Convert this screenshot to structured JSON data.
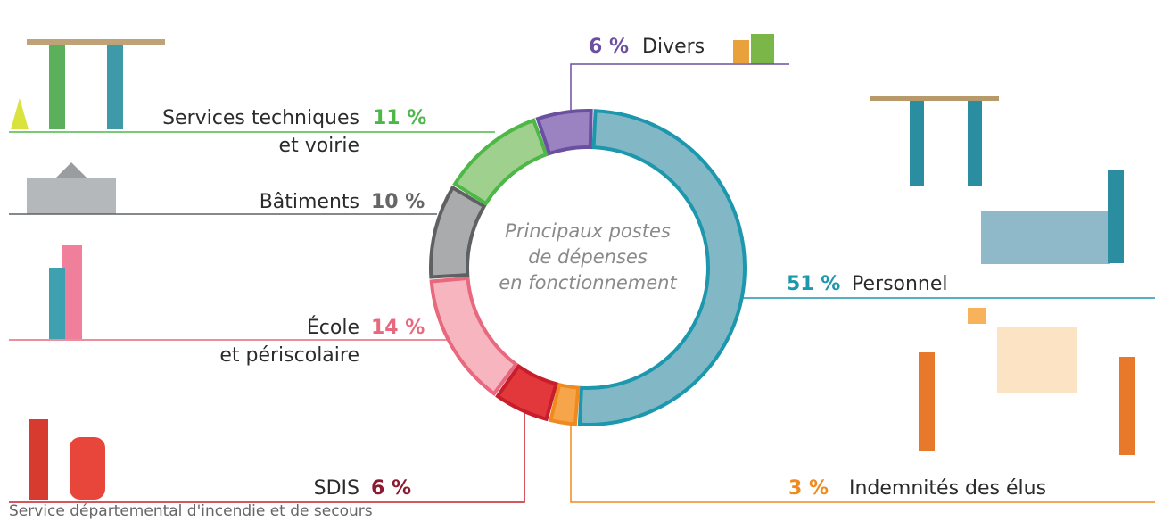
{
  "chart_data": {
    "type": "donut",
    "title": "Principaux postes\nde dépenses\nen fonctionnement",
    "categories": [
      "Personnel",
      "Indemnités des élus",
      "SDIS",
      "École\net périscolaire",
      "Bâtiments",
      "Services techniques\net voirie",
      "Divers"
    ],
    "values": [
      51,
      3,
      6,
      14,
      10,
      11,
      6
    ],
    "value_labels": [
      "51 %",
      "3 %",
      "6 %",
      "14 %",
      "10 %",
      "11 %",
      "6 %"
    ],
    "colors": [
      "#82b8c6",
      "#f6a54a",
      "#e2373b",
      "#f6b5bf",
      "#a9abad",
      "#9fd08d",
      "#9b83c2"
    ],
    "edge_colors": [
      "#1c97ae",
      "#f08a1e",
      "#c81e2b",
      "#e8687d",
      "#5f6062",
      "#4db748",
      "#6b4fa0"
    ],
    "label_colors": [
      "#1c97ae",
      "#f08a1e",
      "#8b1a30",
      "#e8687d",
      "#666666",
      "#4db748",
      "#6b4fa0"
    ],
    "annotations": {
      "SDIS": "Service départemental d'incendie et de secours"
    }
  }
}
